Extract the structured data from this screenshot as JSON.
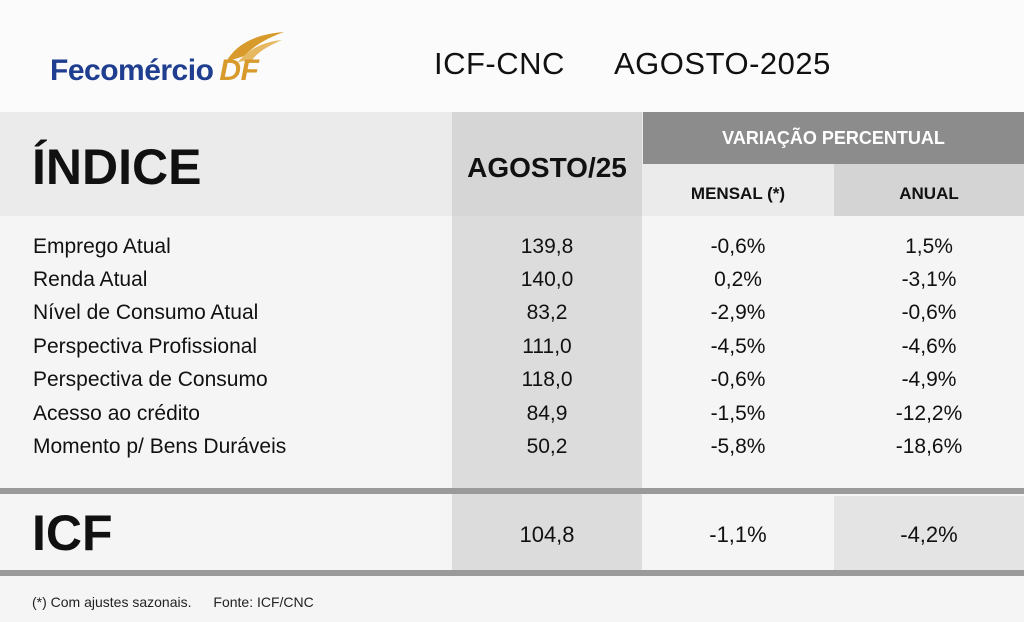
{
  "brand": {
    "name": "Fecomércio",
    "suffix": "DF"
  },
  "title": {
    "left": "ICF-CNC",
    "right": "AGOSTO-2025"
  },
  "colors": {
    "brand_blue": "#1f3e8f",
    "brand_gold": "#d79a2b",
    "band_gray": "#8c8c8c"
  },
  "table": {
    "header": {
      "indice": "ÍNDICE",
      "value_col": "AGOSTO/25",
      "variation_group": "VARIAÇÃO PERCENTUAL",
      "monthly": "MENSAL (*)",
      "annual": "ANUAL"
    },
    "rows": [
      {
        "label": "Emprego Atual",
        "value": "139,8",
        "monthly": "-0,6%",
        "annual": "1,5%"
      },
      {
        "label": "Renda Atual",
        "value": "140,0",
        "monthly": "0,2%",
        "annual": "-3,1%"
      },
      {
        "label": "Nível de Consumo Atual",
        "value": "83,2",
        "monthly": "-2,9%",
        "annual": "-0,6%"
      },
      {
        "label": "Perspectiva Profissional",
        "value": "111,0",
        "monthly": "-4,5%",
        "annual": "-4,6%"
      },
      {
        "label": "Perspectiva de Consumo",
        "value": "118,0",
        "monthly": "-0,6%",
        "annual": "-4,9%"
      },
      {
        "label": "Acesso ao crédito",
        "value": "84,9",
        "monthly": "-1,5%",
        "annual": "-12,2%"
      },
      {
        "label": "Momento p/ Bens Duráveis",
        "value": "50,2",
        "monthly": "-5,8%",
        "annual": "-18,6%"
      }
    ],
    "total": {
      "label": "ICF",
      "value": "104,8",
      "monthly": "-1,1%",
      "annual": "-4,2%"
    }
  },
  "footer": {
    "note": "(*) Com ajustes sazonais.",
    "source": "Fonte: ICF/CNC"
  }
}
